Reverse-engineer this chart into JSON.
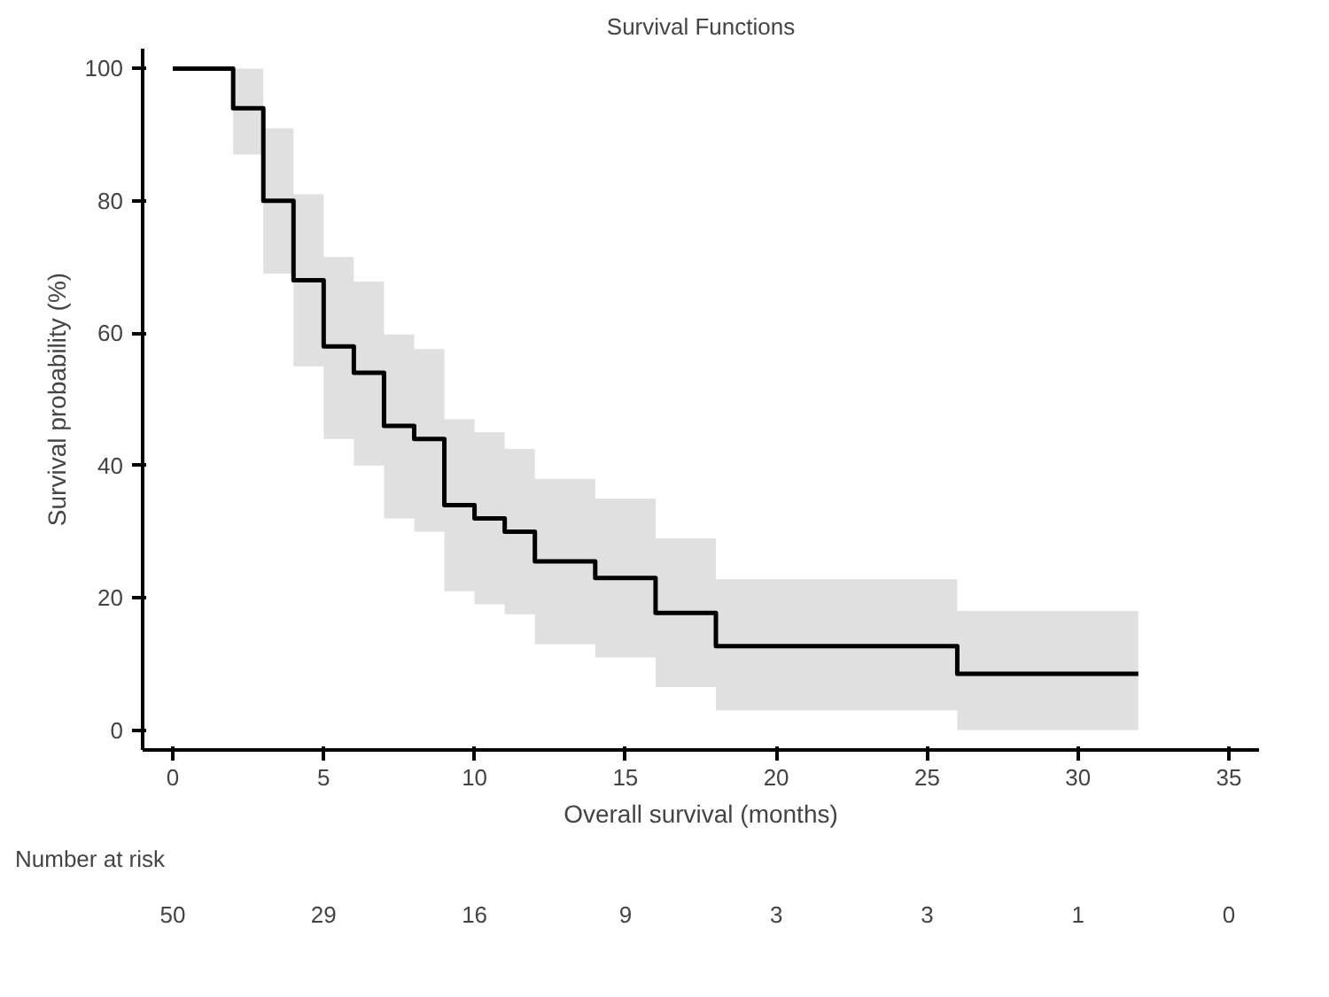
{
  "chart_data": {
    "type": "step",
    "title": "Survival Functions",
    "xlabel": "Overall survival (months)",
    "ylabel": "Survival probability (%)",
    "series": [
      {
        "color": "#000000",
        "x": [
          0,
          2,
          3,
          4,
          5,
          6,
          7,
          8,
          9,
          10,
          11,
          12,
          14,
          16,
          18,
          26,
          32
        ],
        "values": [
          100,
          94,
          80,
          68,
          58,
          54,
          46,
          44,
          34,
          32,
          30,
          25.5,
          23,
          17.7,
          12.7,
          8.5,
          8.5
        ],
        "lower": [
          100,
          87,
          69,
          55,
          44,
          40,
          32,
          30,
          21,
          19,
          17.5,
          13,
          11,
          6.5,
          3,
          0,
          0
        ],
        "upper": [
          100,
          100,
          91,
          81,
          71.5,
          67.8,
          59.8,
          57.6,
          47,
          45,
          42.5,
          38,
          35,
          29,
          22.8,
          18,
          18
        ]
      }
    ],
    "xlim": [
      -1,
      36
    ],
    "ylim": [
      -3,
      103
    ],
    "xticks": [
      0,
      5,
      10,
      15,
      20,
      25,
      30,
      35
    ],
    "yticks": [
      0,
      20,
      40,
      60,
      80,
      100
    ],
    "grid": false,
    "annotations": [
      "Number at risk",
      "50",
      "29",
      "16",
      "9",
      "3",
      "3",
      "1",
      "0"
    ]
  }
}
